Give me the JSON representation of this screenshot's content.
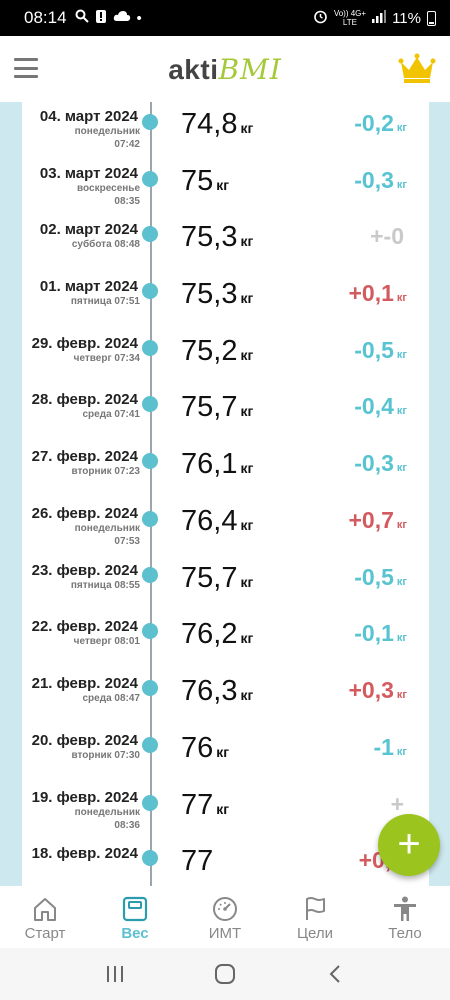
{
  "status_bar": {
    "time": "08:14",
    "network_top": "Vo)) 4G+",
    "network_bottom": "LTE",
    "battery": "11%"
  },
  "header": {
    "logo_part1": "akti",
    "logo_part2": "BMI",
    "menu_icon": "hamburger-icon",
    "premium_icon": "crown-icon"
  },
  "entries": [
    {
      "date": "04. март 2024",
      "day_line1": "понедельник",
      "day_line2": "07:42",
      "weight": "74,8",
      "unit": "кг",
      "delta": "-0,2",
      "delta_unit": "кг",
      "trend": "down"
    },
    {
      "date": "03. март 2024",
      "day_line1": "воскресенье",
      "day_line2": "08:35",
      "weight": "75",
      "unit": "кг",
      "delta": "-0,3",
      "delta_unit": "кг",
      "trend": "down"
    },
    {
      "date": "02. март 2024",
      "day_line1": "суббота 08:48",
      "day_line2": "",
      "weight": "75,3",
      "unit": "кг",
      "delta": "+-0",
      "delta_unit": "",
      "trend": "zero"
    },
    {
      "date": "01. март 2024",
      "day_line1": "пятница 07:51",
      "day_line2": "",
      "weight": "75,3",
      "unit": "кг",
      "delta": "+0,1",
      "delta_unit": "кг",
      "trend": "up"
    },
    {
      "date": "29. февр. 2024",
      "day_line1": "четверг 07:34",
      "day_line2": "",
      "weight": "75,2",
      "unit": "кг",
      "delta": "-0,5",
      "delta_unit": "кг",
      "trend": "down"
    },
    {
      "date": "28. февр. 2024",
      "day_line1": "среда 07:41",
      "day_line2": "",
      "weight": "75,7",
      "unit": "кг",
      "delta": "-0,4",
      "delta_unit": "кг",
      "trend": "down"
    },
    {
      "date": "27. февр. 2024",
      "day_line1": "вторник 07:23",
      "day_line2": "",
      "weight": "76,1",
      "unit": "кг",
      "delta": "-0,3",
      "delta_unit": "кг",
      "trend": "down"
    },
    {
      "date": "26. февр. 2024",
      "day_line1": "понедельник",
      "day_line2": "07:53",
      "weight": "76,4",
      "unit": "кг",
      "delta": "+0,7",
      "delta_unit": "кг",
      "trend": "up"
    },
    {
      "date": "23. февр. 2024",
      "day_line1": "пятница 08:55",
      "day_line2": "",
      "weight": "75,7",
      "unit": "кг",
      "delta": "-0,5",
      "delta_unit": "кг",
      "trend": "down"
    },
    {
      "date": "22. февр. 2024",
      "day_line1": "четверг 08:01",
      "day_line2": "",
      "weight": "76,2",
      "unit": "кг",
      "delta": "-0,1",
      "delta_unit": "кг",
      "trend": "down"
    },
    {
      "date": "21. февр. 2024",
      "day_line1": "среда 08:47",
      "day_line2": "",
      "weight": "76,3",
      "unit": "кг",
      "delta": "+0,3",
      "delta_unit": "кг",
      "trend": "up"
    },
    {
      "date": "20. февр. 2024",
      "day_line1": "вторник 07:30",
      "day_line2": "",
      "weight": "76",
      "unit": "кг",
      "delta": "-1",
      "delta_unit": "кг",
      "trend": "down"
    },
    {
      "date": "19. февр. 2024",
      "day_line1": "понедельник",
      "day_line2": "08:36",
      "weight": "77",
      "unit": "кг",
      "delta": "+",
      "delta_unit": "",
      "trend": "zero"
    },
    {
      "date": "18. февр. 2024",
      "day_line1": "",
      "day_line2": "",
      "weight": "77",
      "unit": "",
      "delta": "+0,2",
      "delta_unit": "",
      "trend": "up"
    }
  ],
  "fab": {
    "label": "+",
    "icon": "plus-icon"
  },
  "bottom_nav": [
    {
      "label": "Старт",
      "icon": "home-icon",
      "active": false
    },
    {
      "label": "Вес",
      "icon": "scale-icon",
      "active": true
    },
    {
      "label": "ИМТ",
      "icon": "gauge-icon",
      "active": false
    },
    {
      "label": "Цели",
      "icon": "flag-icon",
      "active": false
    },
    {
      "label": "Тело",
      "icon": "body-icon",
      "active": false
    }
  ],
  "system_nav": {
    "recents": "recents-icon",
    "home": "home-circle-icon",
    "back": "back-icon"
  },
  "colors": {
    "accent": "#5cc0cf",
    "up": "#d35b60",
    "zero": "#c9c9c9",
    "fab": "#9bc41e",
    "crown": "#f2c300",
    "side_bg": "#cde9ef"
  }
}
